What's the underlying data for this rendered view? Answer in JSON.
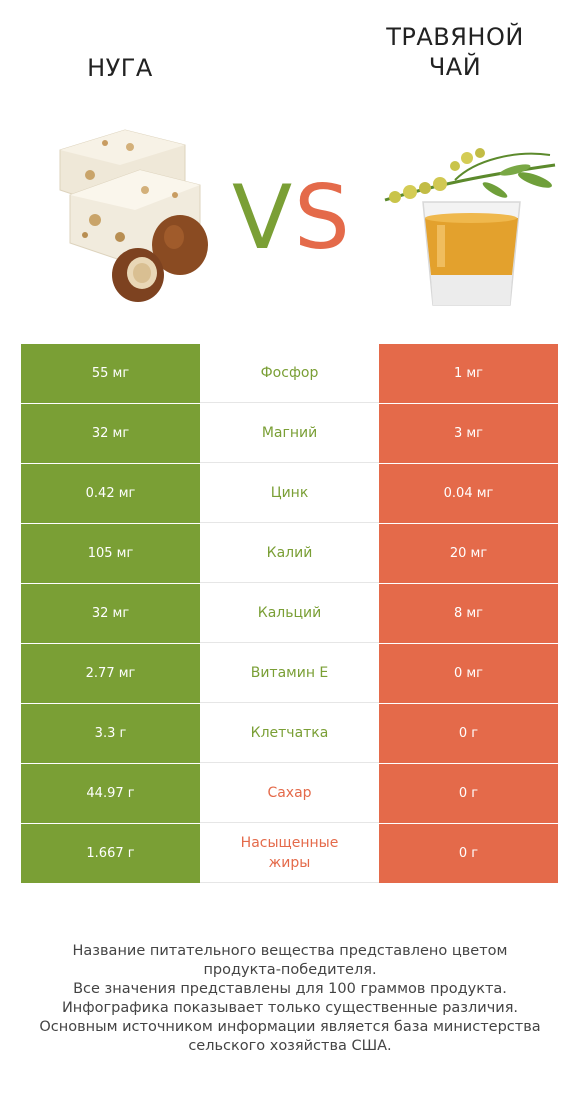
{
  "left_food": {
    "name": "НУГА",
    "image_icon": "nougat-hazelnut-image"
  },
  "right_food": {
    "name": "ТРАВЯНОЙ ЧАЙ",
    "name_line1": "ТРАВЯНОЙ",
    "name_line2": "ЧАЙ",
    "image_icon": "herbal-tea-glass-image"
  },
  "vs": {
    "v": "V",
    "s": "S"
  },
  "colors": {
    "left": "#7a9f35",
    "right": "#e46a4a"
  },
  "rows": [
    {
      "left": "55 мг",
      "nutrient": "Фосфор",
      "right": "1 мг",
      "winner": "left"
    },
    {
      "left": "32 мг",
      "nutrient": "Магний",
      "right": "3 мг",
      "winner": "left"
    },
    {
      "left": "0.42 мг",
      "nutrient": "Цинк",
      "right": "0.04 мг",
      "winner": "left"
    },
    {
      "left": "105 мг",
      "nutrient": "Калий",
      "right": "20 мг",
      "winner": "left"
    },
    {
      "left": "32 мг",
      "nutrient": "Кальций",
      "right": "8 мг",
      "winner": "left"
    },
    {
      "left": "2.77 мг",
      "nutrient": "Витамин E",
      "right": "0 мг",
      "winner": "left"
    },
    {
      "left": "3.3 г",
      "nutrient": "Клетчатка",
      "right": "0 г",
      "winner": "left"
    },
    {
      "left": "44.97 г",
      "nutrient": "Сахар",
      "right": "0 г",
      "winner": "right"
    },
    {
      "left": "1.667 г",
      "nutrient": "Насыщенные жиры",
      "right": "0 г",
      "winner": "right"
    }
  ],
  "footer": {
    "line1": "Название питательного вещества представлено цветом",
    "line2": "продукта-победителя.",
    "line3": "Все значения представлены для 100 граммов продукта.",
    "line4": "Инфографика показывает только существенные различия.",
    "line5": "Основным источником информации является база министерства",
    "line6": "сельского хозяйства США."
  }
}
